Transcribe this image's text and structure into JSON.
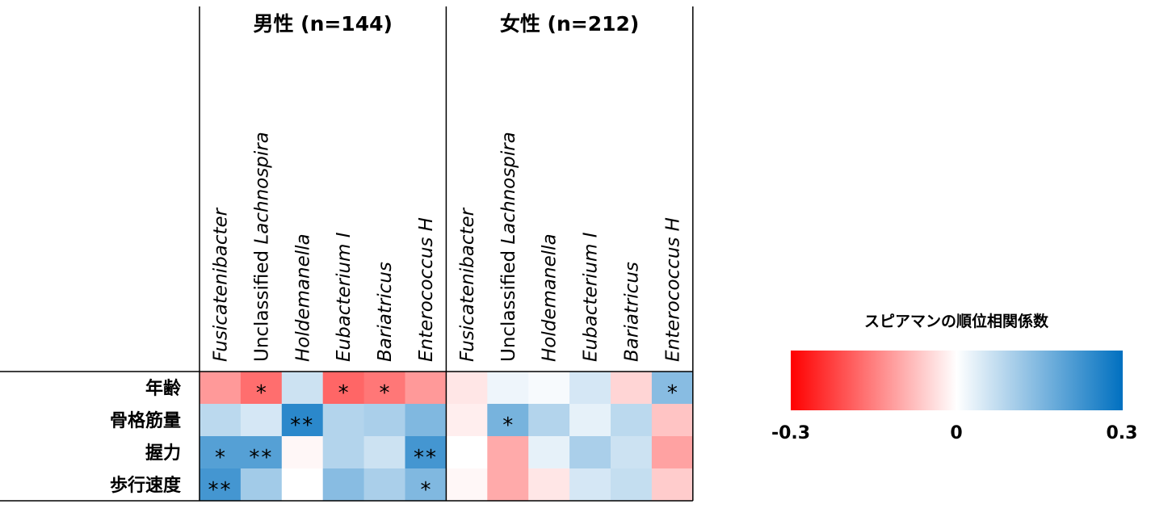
{
  "chart_data": {
    "type": "heatmap",
    "groups": [
      {
        "title": "男性 (n=144)",
        "col_start": 0,
        "col_count": 6
      },
      {
        "title": "女性 (n=212)",
        "col_start": 6,
        "col_count": 6
      }
    ],
    "columns": [
      {
        "italic": "Fusicatenibacter",
        "prefix": ""
      },
      {
        "italic": "Lachnospira",
        "prefix": "Unclassified "
      },
      {
        "italic": "Holdemanella",
        "prefix": ""
      },
      {
        "italic": "Eubacterium I",
        "prefix": ""
      },
      {
        "italic": "Bariatricus",
        "prefix": ""
      },
      {
        "italic": "Enterococcus H",
        "prefix": ""
      },
      {
        "italic": "Fusicatenibacter",
        "prefix": ""
      },
      {
        "italic": "Lachnospira",
        "prefix": "Unclassified "
      },
      {
        "italic": "Holdemanella",
        "prefix": ""
      },
      {
        "italic": "Eubacterium I",
        "prefix": ""
      },
      {
        "italic": "Bariatricus",
        "prefix": ""
      },
      {
        "italic": "Enterococcus H",
        "prefix": ""
      }
    ],
    "rows": [
      "年齢",
      "骨格筋量",
      "握力",
      "歩行速度"
    ],
    "values": [
      [
        -0.12,
        -0.17,
        0.06,
        -0.18,
        -0.16,
        -0.12,
        -0.03,
        0.02,
        0.01,
        0.05,
        -0.05,
        0.14
      ],
      [
        0.08,
        0.05,
        0.25,
        0.09,
        0.1,
        0.15,
        -0.02,
        0.16,
        0.09,
        0.03,
        0.08,
        -0.07
      ],
      [
        0.2,
        0.2,
        -0.01,
        0.09,
        0.06,
        0.22,
        0.0,
        -0.1,
        0.03,
        0.1,
        0.06,
        -0.11
      ],
      [
        0.22,
        0.11,
        0.0,
        0.14,
        0.1,
        0.15,
        -0.01,
        -0.1,
        -0.03,
        0.05,
        0.07,
        -0.06
      ]
    ],
    "significance": [
      [
        "",
        "*",
        "",
        "*",
        "*",
        "",
        "",
        "",
        "",
        "",
        "",
        "*"
      ],
      [
        "",
        "",
        "**",
        "",
        "",
        "",
        "",
        "*",
        "",
        "",
        "",
        ""
      ],
      [
        "*",
        "**",
        "",
        "",
        "",
        "**",
        "",
        "",
        "",
        "",
        "",
        ""
      ],
      [
        "**",
        "",
        "",
        "",
        "",
        "*",
        "",
        "",
        "",
        "",
        "",
        ""
      ]
    ],
    "colorbar": {
      "title": "スピアマンの順位相関係数",
      "min": -0.3,
      "max": 0.3,
      "tick_labels": [
        "-0.3",
        "0",
        "0.3"
      ],
      "min_color": "#ff0000",
      "mid_color": "#ffffff",
      "max_color": "#0070c0"
    }
  }
}
